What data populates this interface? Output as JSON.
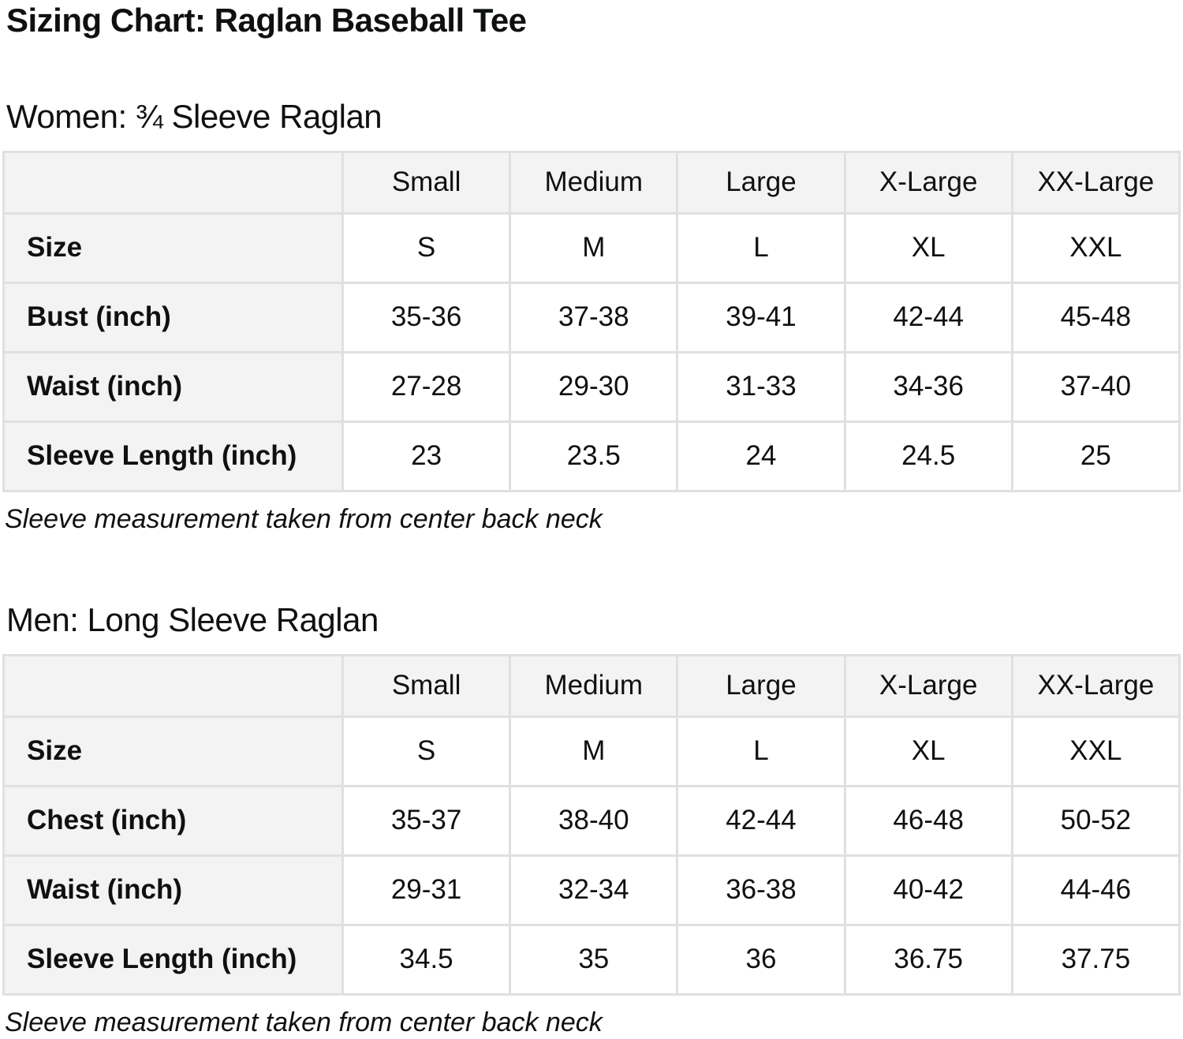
{
  "page": {
    "title": "Sizing Chart: Raglan Baseball Tee"
  },
  "colors": {
    "text": "#0f1111",
    "cell_background": "#f3f3f3",
    "data_cell_background": "#ffffff",
    "border": "#e0e0e0"
  },
  "sections": [
    {
      "id": "women",
      "heading": "Women: ¾ Sleeve Raglan",
      "note": "Sleeve measurement taken from center back neck",
      "table": {
        "column_headers": [
          "",
          "Small",
          "Medium",
          "Large",
          "X-Large",
          "XX-Large"
        ],
        "rows": [
          {
            "label": "Size",
            "values": [
              "S",
              "M",
              "L",
              "XL",
              "XXL"
            ]
          },
          {
            "label": "Bust (inch)",
            "values": [
              "35-36",
              "37-38",
              "39-41",
              "42-44",
              "45-48"
            ]
          },
          {
            "label": "Waist (inch)",
            "values": [
              "27-28",
              "29-30",
              "31-33",
              "34-36",
              "37-40"
            ]
          },
          {
            "label": "Sleeve Length (inch)",
            "values": [
              "23",
              "23.5",
              "24",
              "24.5",
              "25"
            ]
          }
        ]
      }
    },
    {
      "id": "men",
      "heading": "Men: Long Sleeve Raglan",
      "note": "Sleeve measurement taken from center back neck",
      "table": {
        "column_headers": [
          "",
          "Small",
          "Medium",
          "Large",
          "X-Large",
          "XX-Large"
        ],
        "rows": [
          {
            "label": "Size",
            "values": [
              "S",
              "M",
              "L",
              "XL",
              "XXL"
            ]
          },
          {
            "label": "Chest (inch)",
            "values": [
              "35-37",
              "38-40",
              "42-44",
              "46-48",
              "50-52"
            ]
          },
          {
            "label": "Waist (inch)",
            "values": [
              "29-31",
              "32-34",
              "36-38",
              "40-42",
              "44-46"
            ]
          },
          {
            "label": "Sleeve Length (inch)",
            "values": [
              "34.5",
              "35",
              "36",
              "36.75",
              "37.75"
            ]
          }
        ]
      }
    }
  ]
}
